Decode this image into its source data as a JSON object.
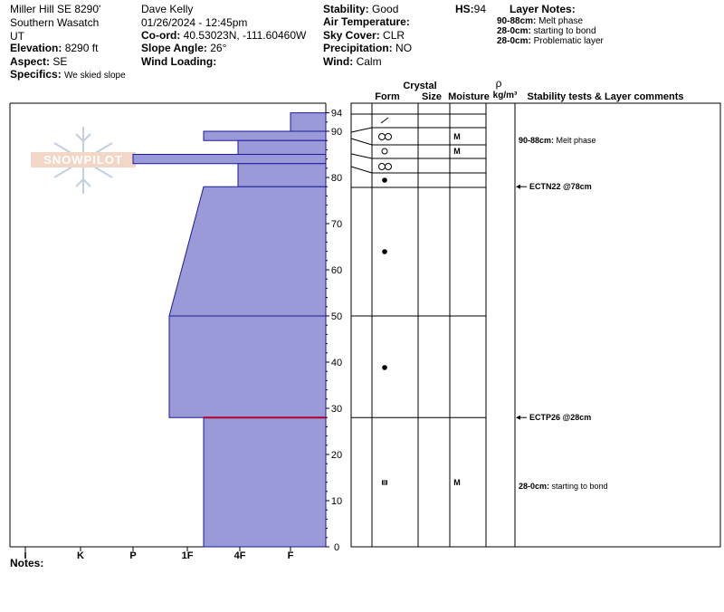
{
  "header": {
    "location": "Miller Hill SE 8290'",
    "range": "Southern Wasatch",
    "state": "UT",
    "elevation_label": "Elevation:",
    "elevation_value": "8290 ft",
    "aspect_label": "Aspect:",
    "aspect_value": "SE",
    "specifics_label": "Specifics:",
    "specifics_value": "We skied slope",
    "observer": "Dave Kelly",
    "datetime": "01/26/2024 - 12:45pm",
    "coord_label": "Co-ord:",
    "coord_value": "40.53023N, -111.60460W",
    "slope_label": "Slope Angle:",
    "slope_value": "26°",
    "wind_loading_label": "Wind Loading:",
    "wind_loading_value": "",
    "stability_label": "Stability:",
    "stability_value": "Good",
    "air_temp_label": "Air Temperature:",
    "air_temp_value": "",
    "sky_label": "Sky Cover:",
    "sky_value": "CLR",
    "precip_label": "Precipitation:",
    "precip_value": "NO",
    "wind_label": "Wind:",
    "wind_value": "Calm",
    "hs_label": "HS:",
    "hs_value": "94",
    "layer_notes_title": "Layer Notes:",
    "layer_notes": [
      {
        "range": "90-88cm:",
        "text": "Melt phase"
      },
      {
        "range": "28-0cm:",
        "text": "starting to bond"
      },
      {
        "range": "28-0cm:",
        "text": "Problematic layer"
      }
    ]
  },
  "watermark": "SNOWPILOT",
  "columns": {
    "crystal": "Crystal",
    "form": "Form",
    "size": "Size",
    "moisture": "Moisture",
    "rho": "ρ",
    "density": "kg/m³",
    "stability": "Stability tests & Layer comments"
  },
  "hardness_ticks": [
    "I",
    "K",
    "P",
    "1F",
    "4F",
    "F"
  ],
  "height_ticks": [
    "94",
    "90",
    "80",
    "70",
    "60",
    "50",
    "40",
    "30",
    "20",
    "10",
    "0"
  ],
  "notes_label": "Notes:",
  "chart_data": {
    "type": "snow-profile",
    "total_height_cm": 94,
    "hardness_scale": [
      "F",
      "4F",
      "1F",
      "P",
      "K",
      "I"
    ],
    "layers": [
      {
        "top": 94,
        "bottom": 90,
        "hardness": "F",
        "form": "DF",
        "moisture": ""
      },
      {
        "top": 90,
        "bottom": 88,
        "hardness": "1F",
        "form": "MF",
        "moisture": "M"
      },
      {
        "top": 88,
        "bottom": 85,
        "hardness": "4F",
        "form": "RG",
        "moisture": "M"
      },
      {
        "top": 85,
        "bottom": 83,
        "hardness": "K",
        "form": "MF",
        "moisture": ""
      },
      {
        "top": 83,
        "bottom": 78,
        "hardness": "4F",
        "form": "PP",
        "moisture": ""
      },
      {
        "top": 78,
        "bottom": 50,
        "hardness_top": "1F",
        "hardness_bottom": "P",
        "form": "PP",
        "moisture": ""
      },
      {
        "top": 50,
        "bottom": 28,
        "hardness": "P",
        "form": "PP",
        "moisture": ""
      },
      {
        "top": 28,
        "bottom": 0,
        "hardness": "1F",
        "form": "FC",
        "moisture": "M"
      }
    ],
    "stability_tests": [
      {
        "height": 78,
        "label": "ECTN22 @78cm"
      },
      {
        "height": 28,
        "label": "ECTP26 @28cm"
      }
    ],
    "layer_comments": [
      {
        "height": 89,
        "label": "90-88cm: Melt phase"
      },
      {
        "height": 14,
        "label": "28-0cm: starting to bond"
      }
    ]
  }
}
